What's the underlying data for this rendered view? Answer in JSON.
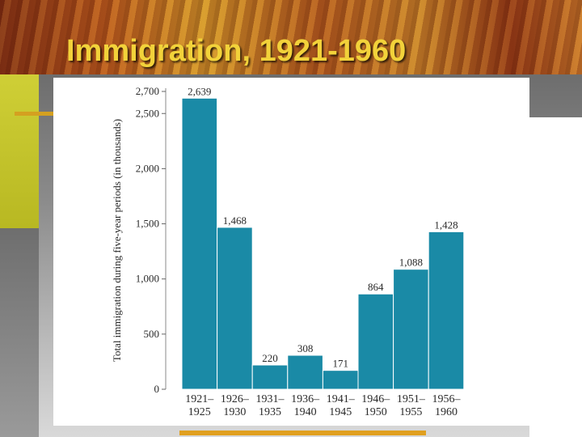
{
  "slide": {
    "title": "Immigration, 1921-1960",
    "accent_color": "#f2d23a",
    "bar_color": "#1a8aa6"
  },
  "chart_data": {
    "type": "bar",
    "categories": [
      [
        "1921–",
        "1925"
      ],
      [
        "1926–",
        "1930"
      ],
      [
        "1931–",
        "1935"
      ],
      [
        "1936–",
        "1940"
      ],
      [
        "1941–",
        "1945"
      ],
      [
        "1946–",
        "1950"
      ],
      [
        "1951–",
        "1955"
      ],
      [
        "1956–",
        "1960"
      ]
    ],
    "values": [
      2639,
      1468,
      220,
      308,
      171,
      864,
      1088,
      1428
    ],
    "value_labels": [
      "2,639",
      "1,468",
      "220",
      "308",
      "171",
      "864",
      "1,088",
      "1,428"
    ],
    "ylabel": "Total immigration during five-year periods (in thousands)",
    "xlabel": "",
    "yticks": [
      0,
      500,
      1000,
      1500,
      2000,
      2500,
      2700
    ],
    "ytick_labels": [
      "0",
      "500",
      "1,000",
      "1,500",
      "2,000",
      "2,500",
      "2,700"
    ],
    "ylim": [
      0,
      2700
    ],
    "grid": false
  }
}
